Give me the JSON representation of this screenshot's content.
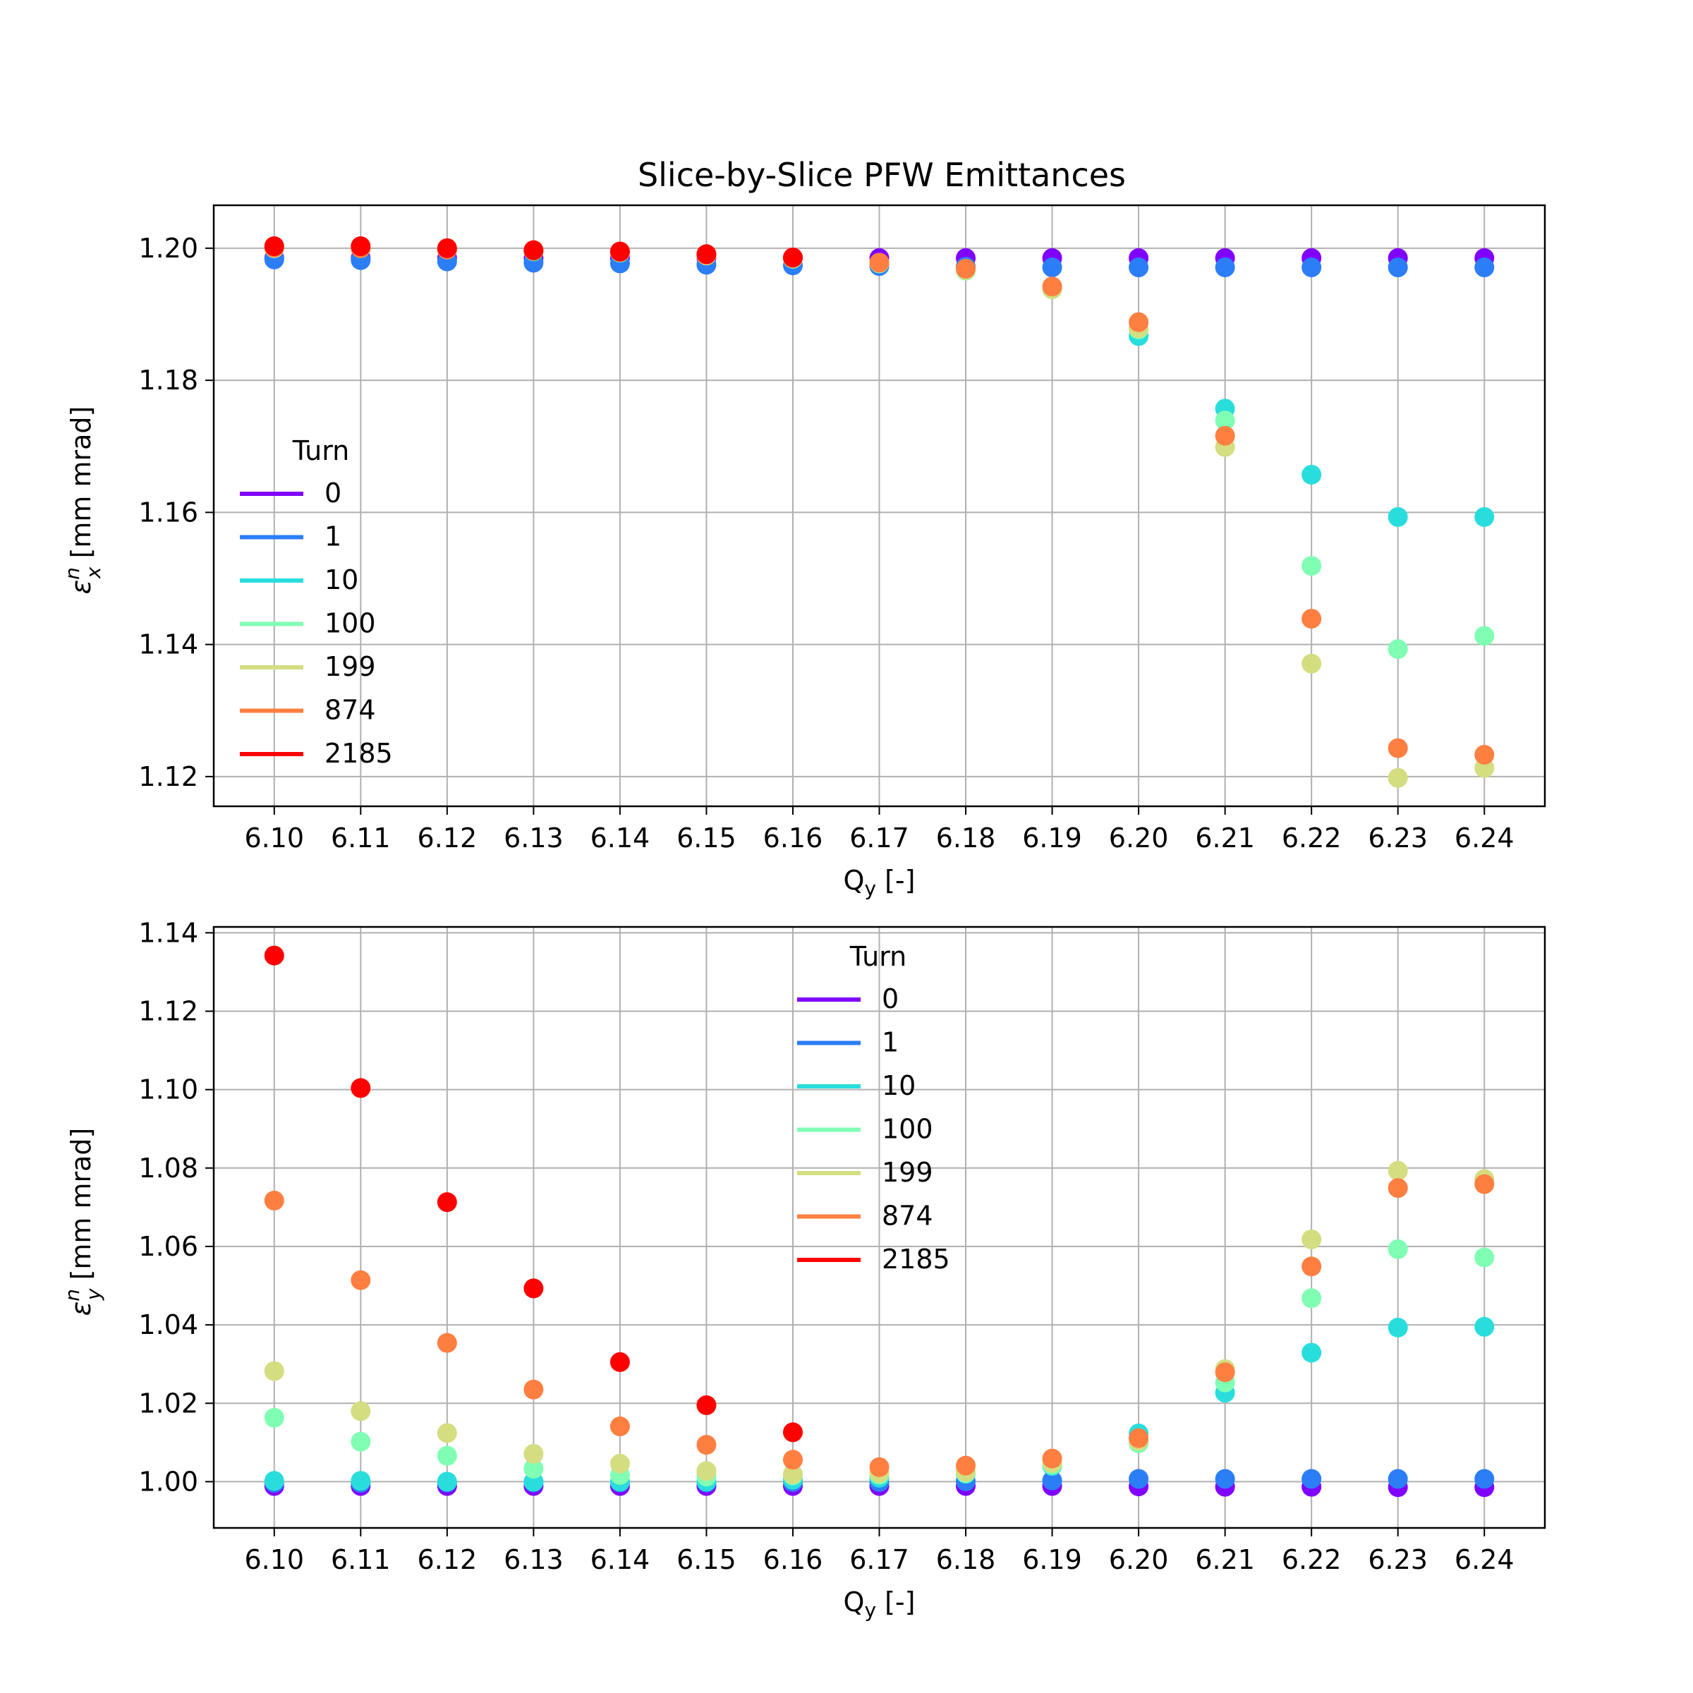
{
  "figure": {
    "title": "Slice-by-Slice PFW Emittances"
  },
  "colors": {
    "0": "#8000ff",
    "1": "#2c7ef7",
    "10": "#2adddd",
    "100": "#80ffb4",
    "199": "#d4dd80",
    "874": "#ff7f41",
    "2185": "#ff0000",
    "grid": "#b0b0b0",
    "axes": "#000000"
  },
  "chart_data": [
    {
      "type": "scatter",
      "xlabel_main": "Q",
      "xlabel_sub": "y",
      "xlabel_tail": " [-]",
      "ylabel_sym": "ε",
      "ylabel_sup": "n",
      "ylabel_sub": "x",
      "ylabel_tail": " [mm mrad]",
      "xlim": [
        6.093,
        6.247
      ],
      "ylim": [
        1.1155,
        1.2065
      ],
      "xticks": [
        "6.10",
        "6.11",
        "6.12",
        "6.13",
        "6.14",
        "6.15",
        "6.16",
        "6.17",
        "6.18",
        "6.19",
        "6.20",
        "6.21",
        "6.22",
        "6.23",
        "6.24"
      ],
      "yticks": [
        "1.12",
        "1.14",
        "1.16",
        "1.18",
        "1.20"
      ],
      "grid": true,
      "legend": {
        "title": "Turn",
        "placement": "center-left"
      },
      "x": [
        6.1,
        6.11,
        6.12,
        6.13,
        6.14,
        6.15,
        6.16,
        6.17,
        6.18,
        6.19,
        6.2,
        6.21,
        6.22,
        6.23,
        6.24
      ],
      "series": [
        {
          "name": "0",
          "values": [
            1.1985,
            1.1985,
            1.1985,
            1.1985,
            1.1985,
            1.1985,
            1.1985,
            1.1985,
            1.1985,
            1.1985,
            1.1985,
            1.1985,
            1.1985,
            1.1985,
            1.1985
          ]
        },
        {
          "name": "1",
          "values": [
            1.1983,
            1.1982,
            1.198,
            1.1978,
            1.1977,
            1.1975,
            1.1974,
            1.1973,
            1.1972,
            1.1971,
            1.1971,
            1.1971,
            1.1971,
            1.1971,
            1.1971
          ]
        },
        {
          "name": "10",
          "values": [
            1.2,
            1.2,
            1.1998,
            1.1995,
            1.1993,
            1.199,
            1.1985,
            1.1977,
            1.1967,
            1.1938,
            1.1867,
            1.1757,
            1.1657,
            1.1593,
            1.1593
          ]
        },
        {
          "name": "100",
          "values": [
            1.2,
            1.2,
            1.1998,
            1.1996,
            1.1994,
            1.1989,
            1.1984,
            1.1977,
            1.1966,
            1.1938,
            1.1877,
            1.1739,
            1.1519,
            1.1393,
            1.1413
          ]
        },
        {
          "name": "199",
          "values": [
            1.2,
            1.2,
            1.1999,
            1.1996,
            1.1994,
            1.1989,
            1.1985,
            1.1978,
            1.1967,
            1.1938,
            1.1879,
            1.1699,
            1.1371,
            1.1198,
            1.1213
          ]
        },
        {
          "name": "874",
          "values": [
            1.2001,
            1.2,
            1.1998,
            1.1996,
            1.1994,
            1.199,
            1.1985,
            1.1978,
            1.1969,
            1.1942,
            1.1888,
            1.1716,
            1.1439,
            1.1243,
            1.1233
          ]
        },
        {
          "name": "2185",
          "values": [
            1.2003,
            1.2003,
            1.2,
            1.1997,
            1.1995,
            1.1991,
            1.1986,
            null,
            null,
            null,
            null,
            null,
            null,
            null,
            null
          ]
        }
      ]
    },
    {
      "type": "scatter",
      "xlabel_main": "Q",
      "xlabel_sub": "y",
      "xlabel_tail": " [-]",
      "ylabel_sym": "ε",
      "ylabel_sup": "n",
      "ylabel_sub": "y",
      "ylabel_tail": " [mm mrad]",
      "xlim": [
        6.093,
        6.247
      ],
      "ylim": [
        0.9882,
        1.1415
      ],
      "xticks": [
        "6.10",
        "6.11",
        "6.12",
        "6.13",
        "6.14",
        "6.15",
        "6.16",
        "6.17",
        "6.18",
        "6.19",
        "6.20",
        "6.21",
        "6.22",
        "6.23",
        "6.24"
      ],
      "yticks": [
        "1.00",
        "1.02",
        "1.04",
        "1.06",
        "1.08",
        "1.10",
        "1.12",
        "1.14"
      ],
      "grid": true,
      "legend": {
        "title": "Turn",
        "placement": "upper-center"
      },
      "x": [
        6.1,
        6.11,
        6.12,
        6.13,
        6.14,
        6.15,
        6.16,
        6.17,
        6.18,
        6.19,
        6.2,
        6.21,
        6.22,
        6.23,
        6.24
      ],
      "series": [
        {
          "name": "0",
          "values": [
            0.9989,
            0.9989,
            0.9989,
            0.9989,
            0.9989,
            0.9989,
            0.9989,
            0.9989,
            0.9989,
            0.9989,
            0.9988,
            0.9987,
            0.9987,
            0.9986,
            0.9986
          ]
        },
        {
          "name": "1",
          "values": [
            0.9997,
            0.9997,
            0.9998,
            0.9998,
            0.9998,
            0.9998,
            0.9999,
            0.9999,
            1.0001,
            1.0003,
            1.0007,
            1.0007,
            1.0007,
            1.0007,
            1.0007
          ]
        },
        {
          "name": "10",
          "values": [
            1.0002,
            1.0002,
            1.0,
            1.0,
            1.0,
            1.0,
            1.0005,
            1.001,
            1.002,
            1.004,
            1.0123,
            1.0227,
            1.0329,
            1.0393,
            1.0395
          ]
        },
        {
          "name": "100",
          "values": [
            1.0163,
            1.0102,
            1.0066,
            1.0033,
            1.0017,
            1.0013,
            1.0016,
            1.0018,
            1.0022,
            1.0043,
            1.0098,
            1.0253,
            1.0468,
            1.0593,
            1.0572
          ]
        },
        {
          "name": "199",
          "values": [
            1.0282,
            1.018,
            1.0124,
            1.0071,
            1.0046,
            1.0027,
            1.0019,
            1.0022,
            1.0025,
            1.0048,
            1.0104,
            1.0287,
            1.0618,
            1.0793,
            1.0772
          ]
        },
        {
          "name": "874",
          "values": [
            1.0717,
            1.0514,
            1.0354,
            1.0235,
            1.0141,
            1.0094,
            1.0056,
            1.0037,
            1.0041,
            1.0059,
            1.0111,
            1.0279,
            1.0549,
            1.0749,
            1.0759
          ]
        },
        {
          "name": "2185",
          "values": [
            1.1342,
            1.1004,
            1.0713,
            1.0493,
            1.0305,
            1.0195,
            1.0126,
            null,
            null,
            null,
            null,
            null,
            null,
            null,
            null
          ]
        }
      ]
    }
  ]
}
